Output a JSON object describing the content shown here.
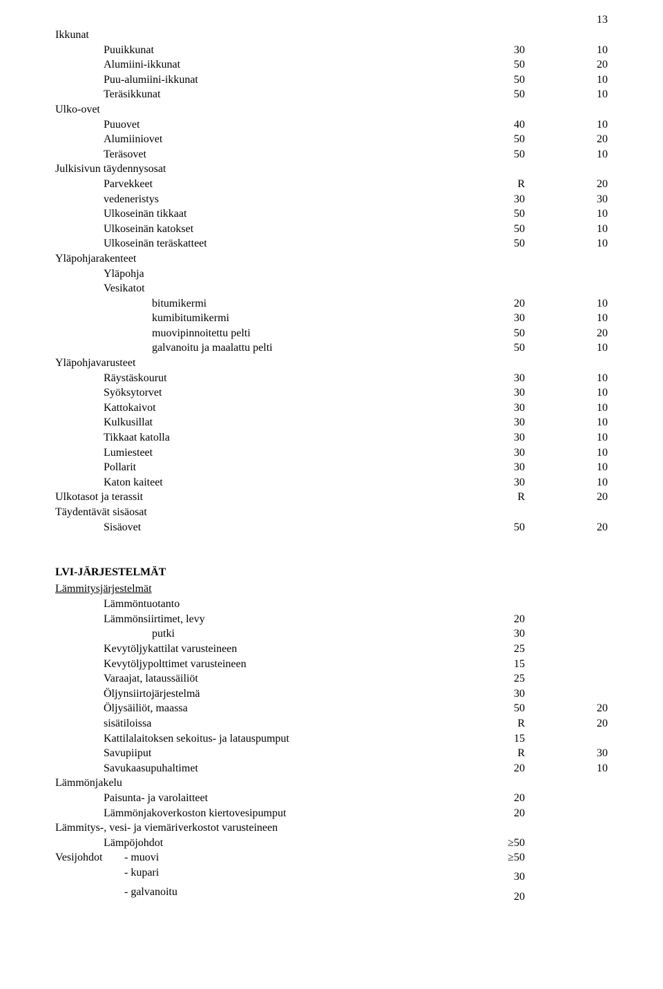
{
  "page_number": "13",
  "sections": {
    "ikkunat": {
      "title": "Ikkunat",
      "rows": [
        {
          "label": "Puuikkunat",
          "v1": "30",
          "v2": "10"
        },
        {
          "label": "Alumiini-ikkunat",
          "v1": "50",
          "v2": "20"
        },
        {
          "label": "Puu-alumiini-ikkunat",
          "v1": "50",
          "v2": "10"
        },
        {
          "label": "Teräsikkunat",
          "v1": "50",
          "v2": "10"
        }
      ]
    },
    "ulko_ovet": {
      "title": "Ulko-ovet",
      "rows": [
        {
          "label": "Puuovet",
          "v1": "40",
          "v2": "10"
        },
        {
          "label": "Alumiiniovet",
          "v1": "50",
          "v2": "20"
        },
        {
          "label": "Teräsovet",
          "v1": "50",
          "v2": "10"
        }
      ]
    },
    "julkisivun": {
      "title": "Julkisivun täydennysosat",
      "rows": [
        {
          "label": "Parvekkeet",
          "v1": "R",
          "v2": "20"
        },
        {
          "label": "vedeneristys",
          "v1": "30",
          "v2": "30"
        },
        {
          "label": "Ulkoseinän tikkaat",
          "v1": "50",
          "v2": "10"
        },
        {
          "label": "Ulkoseinän katokset",
          "v1": "50",
          "v2": "10"
        },
        {
          "label": "Ulkoseinän teräskatteet",
          "v1": "50",
          "v2": "10"
        }
      ]
    },
    "ylapohjarakenteet": {
      "title": "Yläpohjarakenteet",
      "sub1": "Yläpohja",
      "sub2": "Vesikatot",
      "rows": [
        {
          "label": "bitumikermi",
          "v1": "20",
          "v2": "10"
        },
        {
          "label": "kumibitumikermi",
          "v1": "30",
          "v2": "10"
        },
        {
          "label": "muovipinnoitettu pelti",
          "v1": "50",
          "v2": "20"
        },
        {
          "label": "galvanoitu ja maalattu pelti",
          "v1": "50",
          "v2": "10"
        }
      ]
    },
    "ylapohjavarusteet": {
      "title": "Yläpohjavarusteet",
      "rows": [
        {
          "label": "Räystäskourut",
          "v1": "30",
          "v2": "10"
        },
        {
          "label": "Syöksytorvet",
          "v1": "30",
          "v2": "10"
        },
        {
          "label": "Kattokaivot",
          "v1": "30",
          "v2": "10"
        },
        {
          "label": "Kulkusillat",
          "v1": "30",
          "v2": "10"
        },
        {
          "label": "Tikkaat katolla",
          "v1": "30",
          "v2": "10"
        },
        {
          "label": "Lumiesteet",
          "v1": "30",
          "v2": "10"
        },
        {
          "label": "Pollarit",
          "v1": "30",
          "v2": "10"
        },
        {
          "label": "Katon kaiteet",
          "v1": "30",
          "v2": "10"
        }
      ]
    },
    "ulkotasot": {
      "label": "Ulkotasot ja terassit",
      "v1": "R",
      "v2": "20"
    },
    "taydentavat": {
      "title": "Täydentävät sisäosat",
      "rows": [
        {
          "label": "Sisäovet",
          "v1": "50",
          "v2": "20"
        }
      ]
    },
    "lvi_title": "LVI-JÄRJESTELMÄT",
    "lammitysjarjestelmat": {
      "title": "Lämmitysjärjestelmät",
      "sub": "Lämmöntuotanto",
      "rows": [
        {
          "label": "Lämmönsiirtimet, levy",
          "v1": "20",
          "v2": ""
        },
        {
          "label": "putki",
          "v1": "30",
          "v2": "",
          "extra_indent": true
        },
        {
          "label": "Kevytöljykattilat varusteineen",
          "v1": "25",
          "v2": ""
        },
        {
          "label": "Kevytöljypolttimet varusteineen",
          "v1": "15",
          "v2": ""
        },
        {
          "label": "Varaajat, lataussäiliöt",
          "v1": "25",
          "v2": ""
        },
        {
          "label": "Öljynsiirtojärjestelmä",
          "v1": "30",
          "v2": ""
        },
        {
          "label": "Öljysäiliöt, maassa",
          "v1": "50",
          "v2": "20"
        },
        {
          "label": "sisätiloissa",
          "v1": "R",
          "v2": "20"
        },
        {
          "label": "Kattilalaitoksen sekoitus- ja latauspumput",
          "v1": "15",
          "v2": ""
        },
        {
          "label": "Savupiiput",
          "v1": "R",
          "v2": "30"
        },
        {
          "label": "Savukaasupuhaltimet",
          "v1": "20",
          "v2": "10"
        }
      ]
    },
    "lammonjakelu": {
      "title": "Lämmönjakelu",
      "rows": [
        {
          "label": "Paisunta- ja varolaitteet",
          "v1": "20",
          "v2": ""
        },
        {
          "label": "Lämmönjakoverkoston kiertovesipumput",
          "v1": "20",
          "v2": ""
        }
      ]
    },
    "lammitys_vesi": {
      "title": "Lämmitys-, vesi- ja viemäriverkostot varusteineen",
      "rows": [
        {
          "label": "Lämpöjohdot",
          "v1": "≥50",
          "v2": ""
        }
      ]
    },
    "vesijohdot": {
      "title": "Vesijohdot",
      "rows": [
        {
          "label": "- muovi",
          "v1": "≥50",
          "v2": ""
        },
        {
          "label": "- kupari",
          "v1": "30",
          "v2": ""
        },
        {
          "label": "- galvanoitu",
          "v1": "20",
          "v2": ""
        }
      ]
    }
  }
}
